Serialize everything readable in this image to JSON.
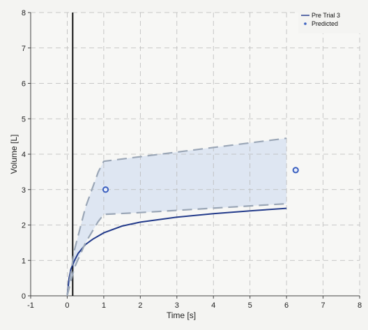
{
  "chart_data": {
    "type": "line",
    "title": "",
    "xlabel": "Time [s]",
    "ylabel": "Volume [L]",
    "xlim": [
      -1,
      8
    ],
    "ylim": [
      0,
      8
    ],
    "x_ticks": [
      "-1",
      "0",
      "1",
      "2",
      "3",
      "4",
      "5",
      "6",
      "7",
      "8"
    ],
    "y_ticks": [
      "0",
      "1",
      "2",
      "3",
      "4",
      "5",
      "6",
      "7",
      "8"
    ],
    "grid": true,
    "legend_position": "top-right",
    "legend": [
      {
        "label": "Pre Trial 3",
        "marker": "line",
        "color": "#2a3f8f"
      },
      {
        "label": "Predicted",
        "marker": "point",
        "color": "#3a5fbf"
      }
    ],
    "series": [
      {
        "name": "Pre Trial 3",
        "style": "solid",
        "color": "#223a8a",
        "x": [
          0,
          0.05,
          0.1,
          0.2,
          0.3,
          0.5,
          0.7,
          1.0,
          1.5,
          2.0,
          3.0,
          4.0,
          5.0,
          6.0
        ],
        "y": [
          0,
          0.5,
          0.75,
          1.0,
          1.2,
          1.45,
          1.6,
          1.78,
          1.97,
          2.08,
          2.22,
          2.32,
          2.4,
          2.47
        ]
      },
      {
        "name": "Upper limit",
        "style": "dashed",
        "color": "#9aa6b6",
        "x": [
          0,
          0.2,
          0.5,
          0.85,
          1.0,
          6.0
        ],
        "y": [
          0,
          1.3,
          2.5,
          3.5,
          3.8,
          4.45
        ]
      },
      {
        "name": "Lower limit",
        "style": "dashed",
        "color": "#9aa6b6",
        "x": [
          0,
          0.2,
          0.5,
          0.85,
          1.0,
          2.0,
          6.0
        ],
        "y": [
          0,
          0.8,
          1.5,
          2.1,
          2.3,
          2.35,
          2.6
        ]
      },
      {
        "name": "Predicted",
        "style": "points",
        "color": "#3a5fbf",
        "x": [
          1.05,
          6.25
        ],
        "y": [
          3.0,
          3.55
        ]
      }
    ],
    "vertical_line": {
      "x": 0.15,
      "color": "#111111"
    },
    "shaded_region": {
      "color": "#cbd8ee"
    }
  }
}
